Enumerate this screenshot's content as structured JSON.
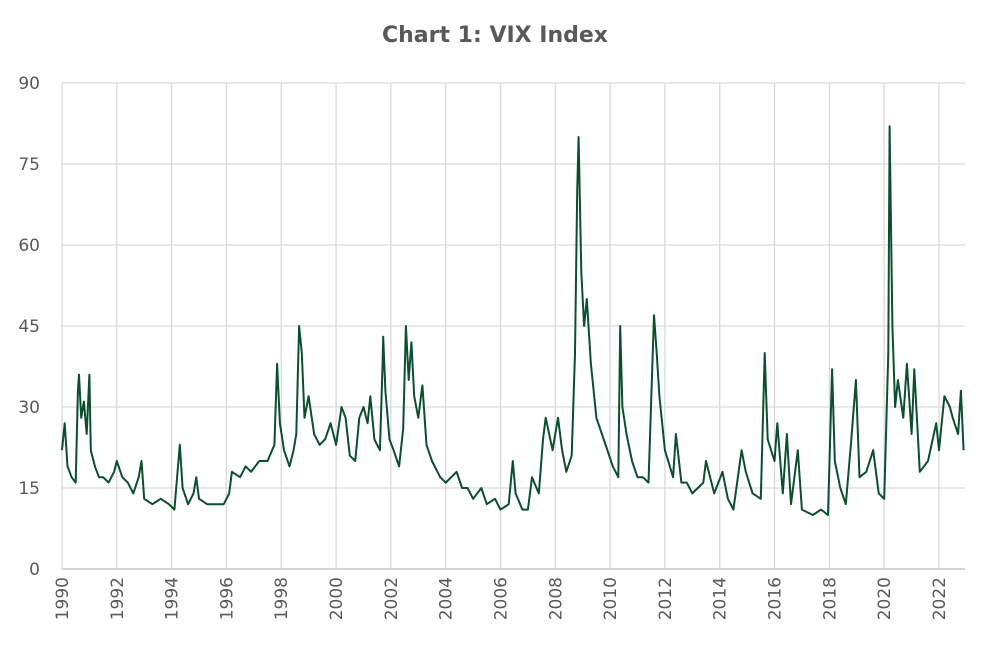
{
  "chart_data": {
    "type": "line",
    "title": "Chart 1: VIX Index",
    "color": "#0b4f2e",
    "grid": true,
    "xlim": [
      1990,
      2022.95
    ],
    "xticks": [
      1990,
      1992,
      1994,
      1996,
      1998,
      2000,
      2002,
      2004,
      2006,
      2008,
      2010,
      2012,
      2014,
      2016,
      2018,
      2020,
      2022
    ],
    "ylim": [
      0,
      90
    ],
    "yticks": [
      0,
      15,
      30,
      45,
      60,
      75,
      90
    ],
    "x": [
      1990.0,
      1990.1,
      1990.2,
      1990.35,
      1990.5,
      1990.58,
      1990.62,
      1990.7,
      1990.8,
      1990.9,
      1991.0,
      1991.05,
      1991.2,
      1991.35,
      1991.5,
      1991.7,
      1991.9,
      1992.0,
      1992.2,
      1992.4,
      1992.6,
      1992.8,
      1992.9,
      1993.0,
      1993.3,
      1993.6,
      1993.9,
      1994.1,
      1994.2,
      1994.3,
      1994.4,
      1994.6,
      1994.8,
      1994.9,
      1995.0,
      1995.3,
      1995.6,
      1995.9,
      1996.1,
      1996.2,
      1996.5,
      1996.7,
      1996.9,
      1997.2,
      1997.5,
      1997.75,
      1997.85,
      1997.95,
      1998.1,
      1998.3,
      1998.45,
      1998.55,
      1998.65,
      1998.75,
      1998.85,
      1999.0,
      1999.2,
      1999.4,
      1999.6,
      1999.8,
      2000.0,
      2000.2,
      2000.35,
      2000.5,
      2000.7,
      2000.85,
      2001.0,
      2001.15,
      2001.25,
      2001.4,
      2001.6,
      2001.7,
      2001.72,
      2001.8,
      2001.95,
      2002.1,
      2002.3,
      2002.45,
      2002.55,
      2002.65,
      2002.75,
      2002.85,
      2003.0,
      2003.15,
      2003.3,
      2003.5,
      2003.8,
      2004.0,
      2004.2,
      2004.4,
      2004.6,
      2004.8,
      2005.0,
      2005.3,
      2005.5,
      2005.8,
      2006.0,
      2006.3,
      2006.45,
      2006.55,
      2006.8,
      2007.0,
      2007.15,
      2007.4,
      2007.55,
      2007.65,
      2007.9,
      2008.1,
      2008.25,
      2008.4,
      2008.6,
      2008.72,
      2008.8,
      2008.85,
      2008.95,
      2009.05,
      2009.15,
      2009.3,
      2009.5,
      2009.7,
      2009.9,
      2010.1,
      2010.3,
      2010.37,
      2010.45,
      2010.6,
      2010.8,
      2011.0,
      2011.2,
      2011.4,
      2011.6,
      2011.7,
      2011.8,
      2012.0,
      2012.3,
      2012.4,
      2012.6,
      2012.8,
      2013.0,
      2013.4,
      2013.5,
      2013.8,
      2014.1,
      2014.3,
      2014.5,
      2014.8,
      2014.95,
      2015.2,
      2015.5,
      2015.64,
      2015.75,
      2016.0,
      2016.1,
      2016.3,
      2016.45,
      2016.6,
      2016.85,
      2017.0,
      2017.4,
      2017.7,
      2017.95,
      2018.1,
      2018.2,
      2018.4,
      2018.6,
      2018.8,
      2018.97,
      2019.1,
      2019.35,
      2019.6,
      2019.8,
      2020.0,
      2020.15,
      2020.2,
      2020.3,
      2020.4,
      2020.5,
      2020.7,
      2020.83,
      2021.0,
      2021.1,
      2021.3,
      2021.6,
      2021.9,
      2022.0,
      2022.2,
      2022.4,
      2022.5,
      2022.7,
      2022.8,
      2022.9
    ],
    "values": [
      22,
      27,
      19,
      17,
      16,
      33,
      36,
      28,
      31,
      25,
      36,
      22,
      19,
      17,
      17,
      16,
      18,
      20,
      17,
      16,
      14,
      17,
      20,
      13,
      12,
      13,
      12,
      11,
      17,
      23,
      15,
      12,
      14,
      17,
      13,
      12,
      12,
      12,
      14,
      18,
      17,
      19,
      18,
      20,
      20,
      23,
      38,
      27,
      22,
      19,
      22,
      25,
      45,
      40,
      28,
      32,
      25,
      23,
      24,
      27,
      23,
      30,
      28,
      21,
      20,
      28,
      30,
      27,
      32,
      24,
      22,
      38,
      43,
      33,
      24,
      22,
      19,
      26,
      45,
      35,
      42,
      32,
      28,
      34,
      23,
      20,
      17,
      16,
      17,
      18,
      15,
      15,
      13,
      15,
      12,
      13,
      11,
      12,
      20,
      14,
      11,
      11,
      17,
      14,
      24,
      28,
      22,
      28,
      22,
      18,
      21,
      40,
      70,
      80,
      55,
      45,
      50,
      38,
      28,
      25,
      22,
      19,
      17,
      45,
      30,
      25,
      20,
      17,
      17,
      16,
      47,
      40,
      32,
      22,
      17,
      25,
      16,
      16,
      14,
      16,
      20,
      14,
      18,
      13,
      11,
      22,
      18,
      14,
      13,
      40,
      24,
      20,
      27,
      14,
      25,
      12,
      22,
      11,
      10,
      11,
      10,
      37,
      20,
      15,
      12,
      24,
      35,
      17,
      18,
      22,
      14,
      13,
      40,
      82,
      45,
      30,
      35,
      28,
      38,
      25,
      37,
      18,
      20,
      27,
      22,
      32,
      30,
      28,
      25,
      33,
      22
    ]
  }
}
